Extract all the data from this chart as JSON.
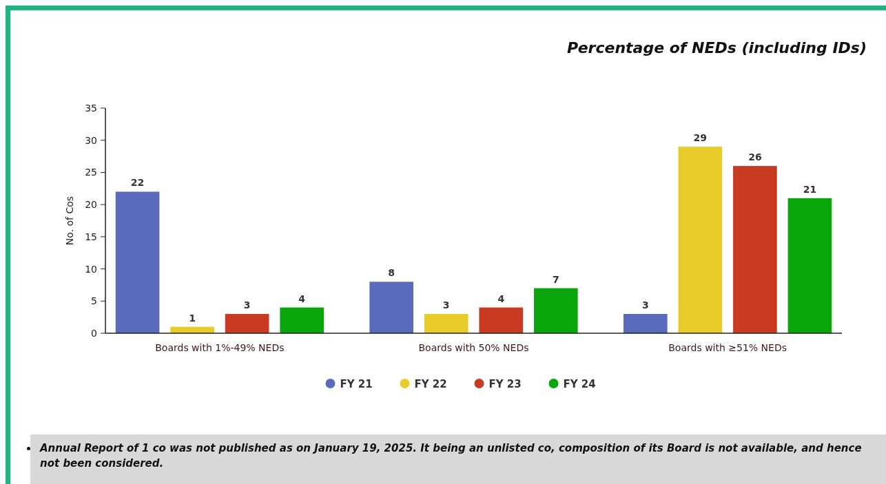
{
  "chart_data": {
    "type": "bar",
    "title": "Percentage of NEDs (including IDs)",
    "ylabel": "No. of Cos",
    "categories": [
      "Boards with 1%-49% NEDs",
      "Boards with 50% NEDs",
      "Boards with ≥51% NEDs"
    ],
    "series": [
      {
        "name": "FY 21",
        "color": "#5a6bbd",
        "values": [
          22,
          8,
          3
        ]
      },
      {
        "name": "FY 22",
        "color": "#e8cd2a",
        "values": [
          1,
          3,
          29
        ]
      },
      {
        "name": "FY 23",
        "color": "#c93a22",
        "values": [
          3,
          4,
          26
        ]
      },
      {
        "name": "FY 24",
        "color": "#0aa50a",
        "values": [
          4,
          7,
          21
        ]
      }
    ],
    "ylim": [
      0,
      35
    ],
    "yticks": [
      0,
      5,
      10,
      15,
      20,
      25,
      30,
      35
    ],
    "grid": false,
    "legend": "bottom",
    "data_labels": true,
    "annotations": [
      "Annual Report of 1 co was not published as on January 19, 2025. It being an unlisted co, composition of its Board is not available, and hence not been considered."
    ]
  }
}
